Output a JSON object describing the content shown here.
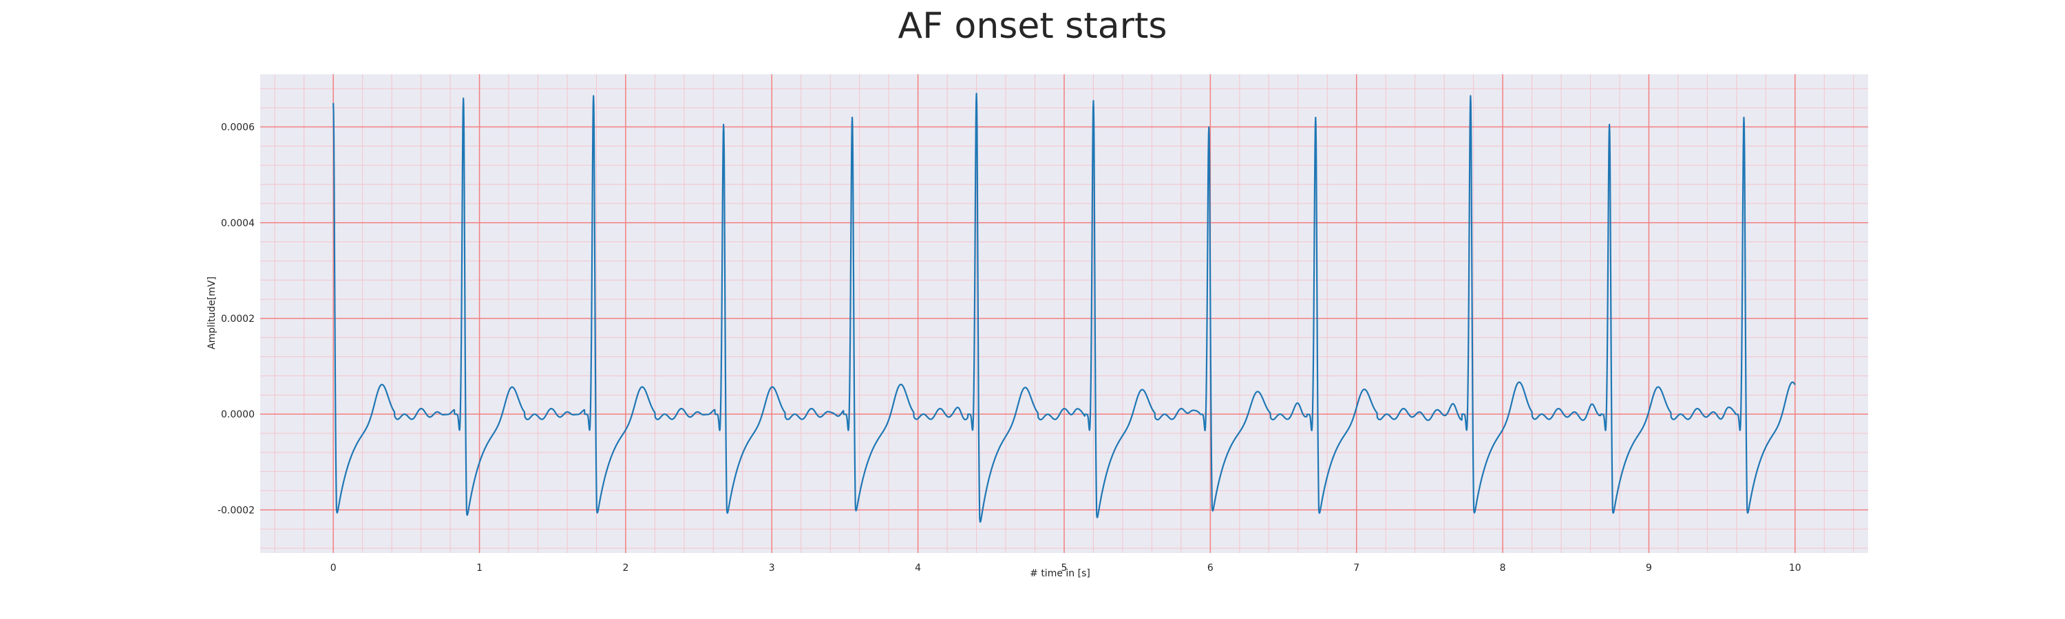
{
  "chart_data": {
    "type": "line",
    "title": "AF onset starts",
    "xlabel": "# time in [s]",
    "ylabel": "Amplitude[mV]",
    "xlim": [
      -0.5,
      10.5
    ],
    "ylim": [
      -0.00029,
      0.00071
    ],
    "x_ticks": [
      0,
      1,
      2,
      3,
      4,
      5,
      6,
      7,
      8,
      9,
      10
    ],
    "x_tick_labels": [
      "0",
      "1",
      "2",
      "3",
      "4",
      "5",
      "6",
      "7",
      "8",
      "9",
      "10"
    ],
    "y_ticks": [
      -0.0002,
      0.0,
      0.0002,
      0.0004,
      0.0006
    ],
    "y_tick_labels": [
      "-0.0002",
      "0.0000",
      "0.0002",
      "0.0004",
      "0.0006"
    ],
    "grid": {
      "major": true,
      "minor": true,
      "major_color": "#f28080",
      "minor_color": "#f5c4cc"
    },
    "background_color": "#eaeaf2",
    "line_color": "#1f77b4",
    "series": [
      {
        "beats": [
          {
            "t": 0.0,
            "peak": 0.00065,
            "trough": -0.00022,
            "twave": 7.5e-05
          },
          {
            "t": 0.89,
            "peak": 0.00066,
            "trough": -0.000225,
            "twave": 7e-05
          },
          {
            "t": 1.78,
            "peak": 0.000665,
            "trough": -0.00022,
            "twave": 7e-05
          },
          {
            "t": 2.67,
            "peak": 0.000605,
            "trough": -0.00022,
            "twave": 7e-05
          },
          {
            "t": 3.55,
            "peak": 0.00062,
            "trough": -0.000215,
            "twave": 7.5e-05
          },
          {
            "t": 4.4,
            "peak": 0.00067,
            "trough": -0.00024,
            "twave": 7e-05
          },
          {
            "t": 5.2,
            "peak": 0.000655,
            "trough": -0.00023,
            "twave": 6.5e-05
          },
          {
            "t": 5.99,
            "peak": 0.0006,
            "trough": -0.000215,
            "twave": 6e-05
          },
          {
            "t": 6.72,
            "peak": 0.00062,
            "trough": -0.00022,
            "twave": 6.5e-05
          },
          {
            "t": 7.78,
            "peak": 0.000665,
            "trough": -0.00022,
            "twave": 8e-05
          },
          {
            "t": 8.73,
            "peak": 0.000605,
            "trough": -0.00022,
            "twave": 7e-05
          },
          {
            "t": 9.65,
            "peak": 0.00062,
            "trough": -0.00022,
            "twave": 8e-05
          }
        ],
        "x_end": 10.0,
        "end_value": 7e-05
      }
    ]
  }
}
